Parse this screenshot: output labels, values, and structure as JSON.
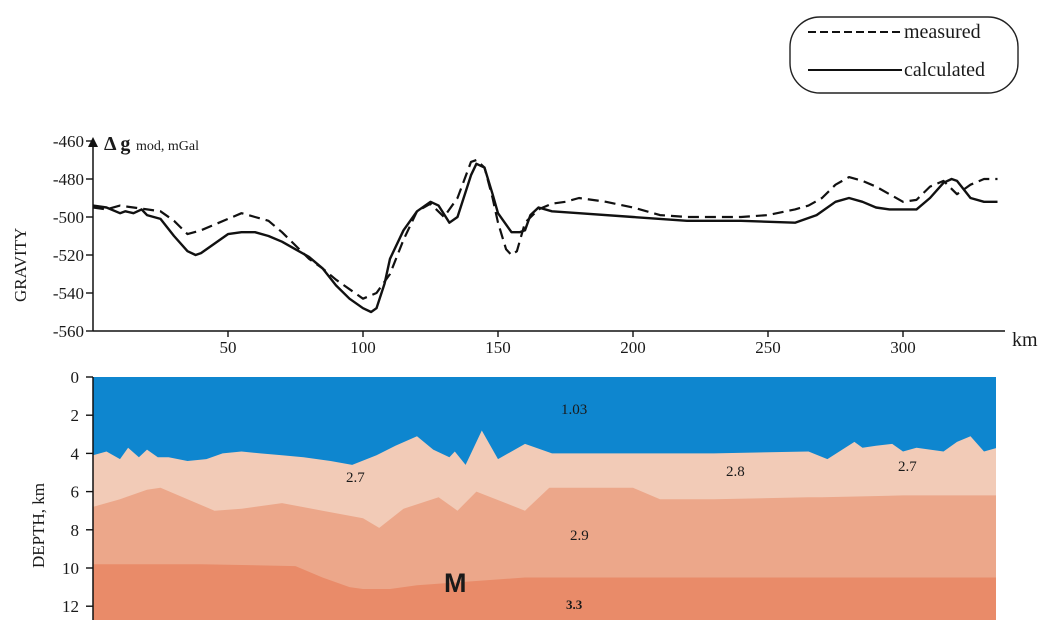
{
  "legend": {
    "measured": "measured",
    "calculated": "calculated"
  },
  "chart_data": [
    {
      "type": "line",
      "ylabel": "GRAVITY",
      "unit_label_symbol": "Δ g",
      "unit_label_sub": "mod, mGal",
      "xlabel": "km",
      "xlim": [
        0,
        335
      ],
      "ylim": [
        -560,
        -460
      ],
      "x_ticks": [
        50,
        100,
        150,
        200,
        250,
        300
      ],
      "y_ticks": [
        -460,
        -480,
        -500,
        -520,
        -540,
        -560
      ],
      "y_tick_labels": [
        "-460",
        "-480",
        "-500",
        "-520",
        "-540",
        "-560"
      ],
      "series": [
        {
          "name": "measured",
          "style": "dashed",
          "x": [
            0,
            5,
            10,
            15,
            20,
            25,
            30,
            35,
            40,
            45,
            50,
            55,
            60,
            65,
            70,
            75,
            80,
            85,
            90,
            95,
            100,
            105,
            110,
            115,
            120,
            125,
            130,
            135,
            140,
            142,
            145,
            148,
            150,
            153,
            155,
            157,
            160,
            165,
            170,
            175,
            180,
            190,
            200,
            210,
            220,
            230,
            240,
            250,
            260,
            265,
            270,
            275,
            280,
            285,
            290,
            295,
            300,
            305,
            310,
            315,
            320,
            325,
            330,
            335
          ],
          "y": [
            -495,
            -496,
            -494,
            -495,
            -496,
            -497,
            -502,
            -509,
            -507,
            -504,
            -501,
            -498,
            -500,
            -502,
            -508,
            -515,
            -522,
            -527,
            -533,
            -538,
            -543,
            -540,
            -530,
            -512,
            -497,
            -493,
            -500,
            -490,
            -471,
            -470,
            -474,
            -490,
            -503,
            -517,
            -520,
            -518,
            -503,
            -496,
            -493,
            -492,
            -490,
            -492,
            -495,
            -499,
            -500,
            -500,
            -500,
            -499,
            -496,
            -494,
            -490,
            -483,
            -479,
            -481,
            -484,
            -488,
            -492,
            -491,
            -484,
            -481,
            -488,
            -483,
            -480,
            -480
          ]
        },
        {
          "name": "calculated",
          "style": "solid",
          "x": [
            0,
            5,
            10,
            12,
            15,
            18,
            20,
            25,
            30,
            35,
            38,
            40,
            45,
            50,
            55,
            60,
            65,
            70,
            75,
            80,
            85,
            90,
            95,
            100,
            103,
            105,
            108,
            110,
            115,
            120,
            125,
            128,
            132,
            135,
            140,
            142,
            145,
            148,
            150,
            155,
            158,
            160,
            162,
            165,
            170,
            180,
            200,
            220,
            240,
            260,
            268,
            275,
            280,
            285,
            290,
            295,
            300,
            305,
            310,
            315,
            318,
            320,
            325,
            330,
            335
          ],
          "y": [
            -494,
            -495,
            -498,
            -497,
            -498,
            -496,
            -499,
            -501,
            -510,
            -518,
            -520,
            -519,
            -514,
            -509,
            -508,
            -508,
            -510,
            -513,
            -517,
            -521,
            -527,
            -536,
            -543,
            -548,
            -550,
            -548,
            -535,
            -522,
            -507,
            -497,
            -492,
            -494,
            -503,
            -500,
            -478,
            -472,
            -474,
            -488,
            -498,
            -508,
            -508,
            -507,
            -499,
            -495,
            -497,
            -498,
            -500,
            -502,
            -502,
            -503,
            -499,
            -492,
            -490,
            -492,
            -495,
            -496,
            -496,
            -496,
            -490,
            -482,
            -480,
            -481,
            -490,
            -492,
            -492
          ]
        }
      ]
    },
    {
      "type": "area",
      "ylabel": "DEPTH, km",
      "ylim": [
        0,
        13
      ],
      "y_ticks": [
        0,
        2,
        4,
        6,
        8,
        10,
        12
      ],
      "y_tick_labels": [
        "0",
        "2",
        "4",
        "6",
        "8",
        "10",
        "12"
      ],
      "xlim": [
        0,
        335
      ],
      "layers": [
        {
          "label": "1.03",
          "color": "#0e86cf",
          "top_x": [
            0,
            335
          ],
          "top": [
            0,
            0
          ]
        },
        {
          "label": "2.7",
          "label2": "2.8",
          "label3": "2.7",
          "color": "#f2cbb7",
          "top_x": [
            0,
            5,
            10,
            13,
            17,
            20,
            24,
            28,
            35,
            42,
            48,
            55,
            62,
            70,
            78,
            88,
            96,
            105,
            112,
            120,
            126,
            132,
            134,
            138,
            144,
            150,
            160,
            170,
            180,
            200,
            230,
            265,
            272,
            282,
            285,
            290,
            296,
            300,
            305,
            315,
            320,
            325,
            330,
            335
          ],
          "top": [
            4.1,
            3.9,
            4.3,
            3.7,
            4.2,
            3.8,
            4.2,
            4.2,
            4.4,
            4.3,
            4.0,
            3.9,
            4.0,
            4.1,
            4.2,
            4.4,
            4.6,
            4.1,
            3.6,
            3.1,
            3.8,
            4.2,
            3.9,
            4.6,
            2.8,
            4.3,
            3.5,
            4.0,
            4.0,
            4.0,
            4.0,
            3.9,
            4.3,
            3.4,
            3.7,
            3.6,
            3.5,
            3.9,
            3.7,
            3.9,
            3.4,
            3.1,
            3.9,
            3.7
          ]
        },
        {
          "label": "2.9",
          "color": "#eca78a",
          "top_x": [
            0,
            10,
            20,
            25,
            35,
            45,
            55,
            70,
            85,
            100,
            106,
            115,
            128,
            135,
            142,
            160,
            169,
            180,
            200,
            210,
            230,
            265,
            270,
            300,
            335
          ],
          "top": [
            6.8,
            6.4,
            5.9,
            5.8,
            6.4,
            7.0,
            6.9,
            6.6,
            7.0,
            7.4,
            7.9,
            6.9,
            6.3,
            7.0,
            6.0,
            7.0,
            5.8,
            5.8,
            5.8,
            6.4,
            6.4,
            6.3,
            6.3,
            6.2,
            6.2
          ]
        },
        {
          "label": "3.3",
          "color": "#e98b69",
          "top_x": [
            0,
            40,
            75,
            85,
            95,
            100,
            110,
            120,
            140,
            160,
            180,
            200,
            240,
            280,
            335
          ],
          "top": [
            9.8,
            9.8,
            9.9,
            10.5,
            11.0,
            11.1,
            11.1,
            10.9,
            10.7,
            10.5,
            10.5,
            10.5,
            10.5,
            10.5,
            10.5
          ]
        }
      ],
      "annotation": "M"
    }
  ]
}
